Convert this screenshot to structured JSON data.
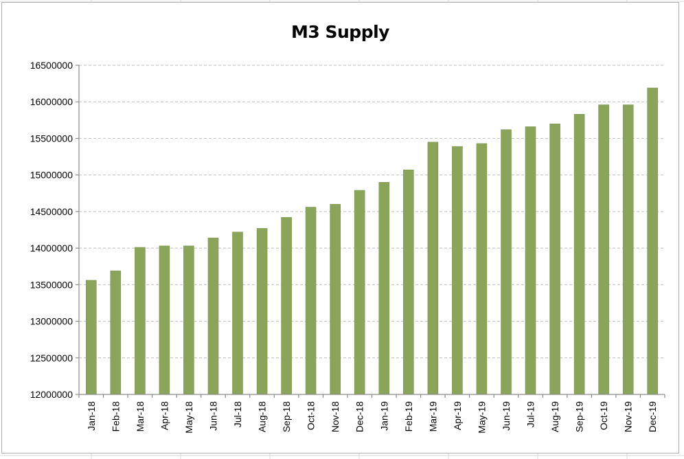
{
  "chart_data": {
    "type": "bar",
    "title": "M3 Supply",
    "xlabel": "",
    "ylabel": "",
    "ylim": [
      12000000,
      16500000
    ],
    "yticks": [
      12000000,
      12500000,
      13000000,
      13500000,
      14000000,
      14500000,
      15000000,
      15500000,
      16000000,
      16500000
    ],
    "ytick_labels": [
      "12000000",
      "12500000",
      "13000000",
      "13500000",
      "14000000",
      "14500000",
      "15000000",
      "15500000",
      "16000000",
      "16500000"
    ],
    "grid": "horizontal dashed",
    "legend": "none",
    "categories": [
      "Jan-18",
      "Feb-18",
      "Mar-18",
      "Apr-18",
      "May-18",
      "Jun-18",
      "Jul-18",
      "Aug-18",
      "Sep-18",
      "Oct-18",
      "Nov-18",
      "Dec-18",
      "Jan-19",
      "Feb-19",
      "Mar-19",
      "Apr-19",
      "May-19",
      "Jun-19",
      "Jul-19",
      "Aug-19",
      "Sep-19",
      "Oct-19",
      "Nov-19",
      "Dec-19"
    ],
    "values": [
      13560000,
      13690000,
      14010000,
      14030000,
      14030000,
      14140000,
      14220000,
      14270000,
      14420000,
      14560000,
      14600000,
      14790000,
      14900000,
      15070000,
      15450000,
      15390000,
      15430000,
      15620000,
      15660000,
      15700000,
      15830000,
      15960000,
      15960000,
      16190000
    ],
    "colors": {
      "bar": "#8aa55a",
      "bar_edge": "#7a9650",
      "grid": "#c8c8c8",
      "axis": "#8c8c8c"
    }
  }
}
